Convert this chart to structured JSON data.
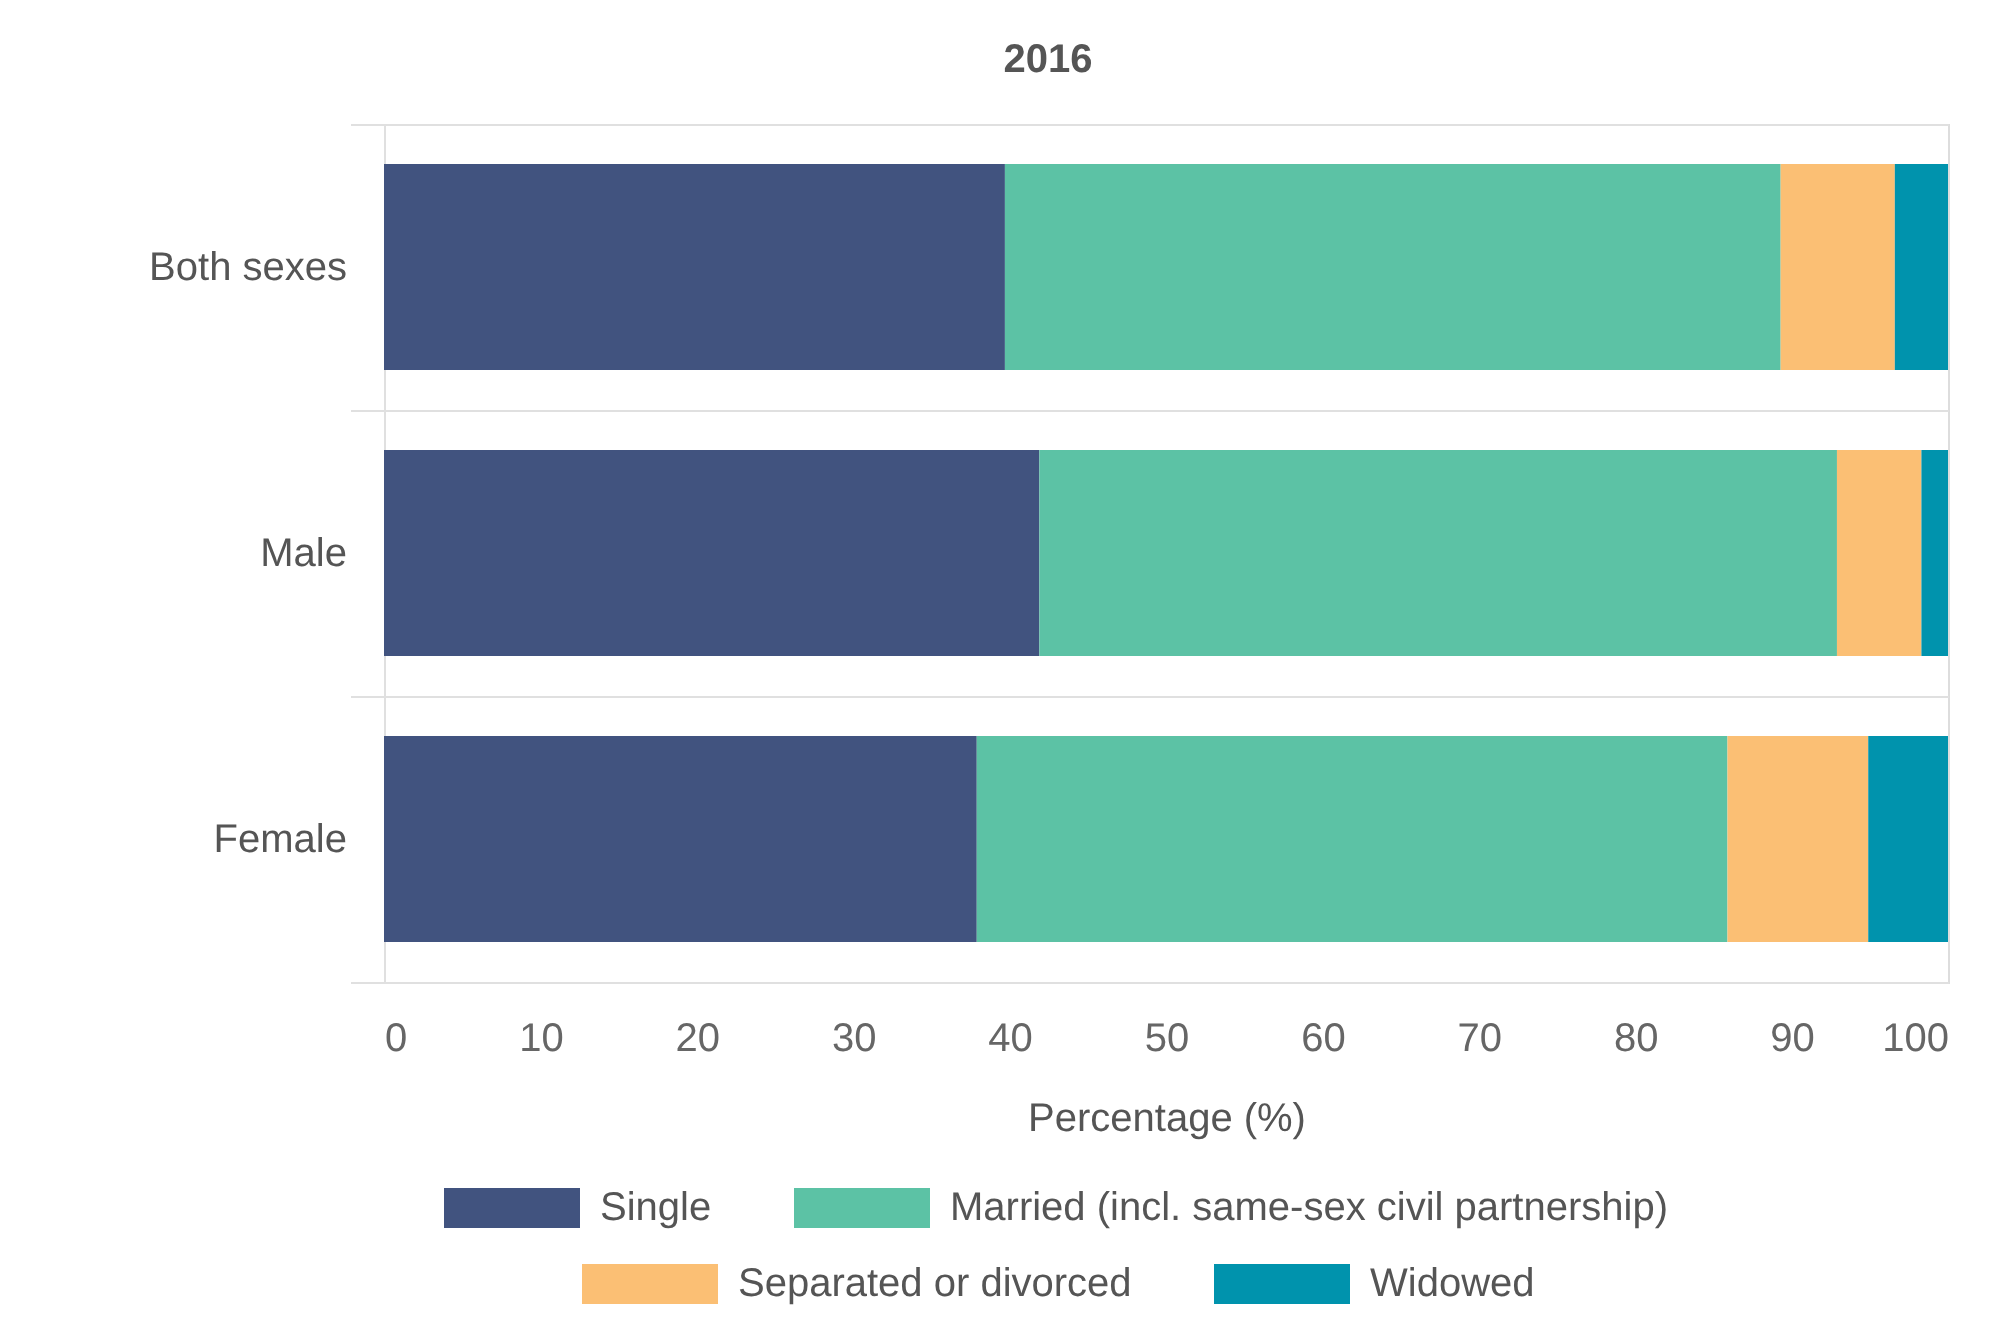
{
  "chart_data": {
    "type": "bar",
    "orientation": "horizontal",
    "stacked": true,
    "title": "2016",
    "xlabel": "Percentage (%)",
    "categories": [
      "Both sexes",
      "Male",
      "Female"
    ],
    "series": [
      {
        "name": "Single",
        "color": "#41537f",
        "values": [
          39.7,
          41.9,
          37.9
        ]
      },
      {
        "name": "Married (incl. same-sex civil partnership)",
        "color": "#5cc2a5",
        "values": [
          49.6,
          51.0,
          48.0
        ]
      },
      {
        "name": "Separated or divorced",
        "color": "#fbbf74",
        "values": [
          7.3,
          5.4,
          9.0
        ]
      },
      {
        "name": "Widowed",
        "color": "#0093ad",
        "values": [
          3.4,
          1.7,
          5.1
        ]
      }
    ],
    "xlim": [
      0,
      100
    ],
    "xticks": [
      0,
      10,
      20,
      30,
      40,
      50,
      60,
      70,
      80,
      90,
      100
    ],
    "grid": "y",
    "legend": "bottom"
  }
}
